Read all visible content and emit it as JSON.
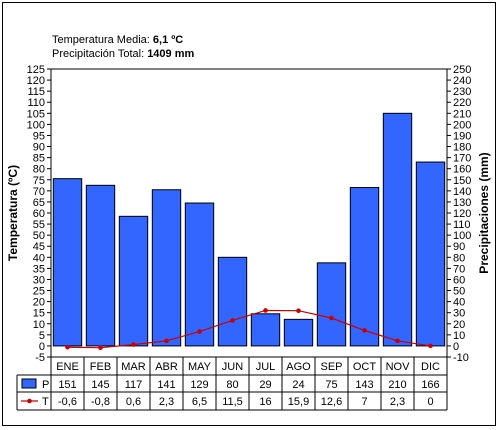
{
  "header": {
    "temp_label": "Temperatura Media:",
    "temp_value": "6,1 ºC",
    "precip_label": "Precipitación Total:",
    "precip_value": "1409 mm"
  },
  "chart_data": {
    "type": "bar",
    "categories": [
      "ENE",
      "FEB",
      "MAR",
      "ABR",
      "MAY",
      "JUN",
      "JUL",
      "AGO",
      "SEP",
      "OCT",
      "NOV",
      "DIC"
    ],
    "series": [
      {
        "name": "P",
        "type": "bar",
        "axis": "right",
        "color": "#3366ff",
        "values": [
          151,
          145,
          117,
          141,
          129,
          80,
          29,
          24,
          75,
          143,
          210,
          166
        ],
        "labels": [
          "151",
          "145",
          "117",
          "141",
          "129",
          "80",
          "29",
          "24",
          "75",
          "143",
          "210",
          "166"
        ]
      },
      {
        "name": "T",
        "type": "line",
        "axis": "left",
        "color": "#cc0000",
        "values": [
          -0.6,
          -0.8,
          0.6,
          2.3,
          6.5,
          11.5,
          16,
          15.9,
          12.6,
          7,
          2.3,
          0
        ],
        "labels": [
          "-0,6",
          "-0,8",
          "0,6",
          "2,3",
          "6,5",
          "11,5",
          "16",
          "15,9",
          "12,6",
          "7",
          "2,3",
          "0"
        ]
      }
    ],
    "ylabel": "Temperatura (ºC)",
    "y2label": "Precipitaciones (mm)",
    "ylim": [
      -5,
      125
    ],
    "y2lim": [
      -10,
      250
    ],
    "yticks": [
      -5,
      0,
      5,
      10,
      15,
      20,
      25,
      30,
      35,
      40,
      45,
      50,
      55,
      60,
      65,
      70,
      75,
      80,
      85,
      90,
      95,
      100,
      105,
      110,
      115,
      120,
      125
    ],
    "y2ticks": [
      -10,
      0,
      10,
      20,
      30,
      40,
      50,
      60,
      70,
      80,
      90,
      100,
      110,
      120,
      130,
      140,
      150,
      160,
      170,
      180,
      190,
      200,
      210,
      220,
      230,
      240,
      250
    ],
    "grid": false,
    "legend": "bottom-left, inside data table"
  }
}
